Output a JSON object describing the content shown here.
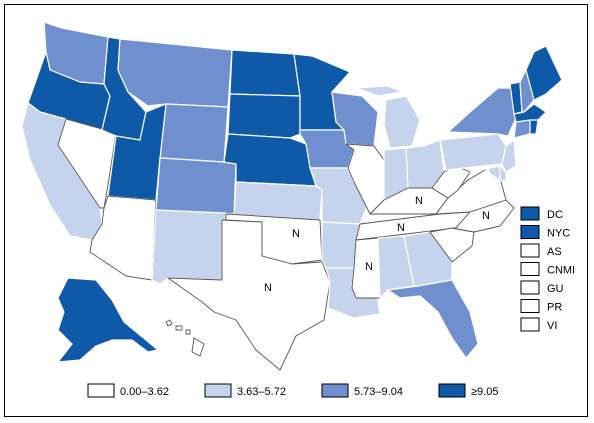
{
  "colors": {
    "c1": "#ffffff",
    "c2": "#c6d3ec",
    "c3": "#6f8fce",
    "c4": "#0f5aa8",
    "border": "#000000"
  },
  "map": {
    "n_label": "N",
    "state_classes": {
      "WA": "c3",
      "OR": "c4",
      "CA": "c2",
      "NV": "c1",
      "ID": "c4",
      "MT": "c3",
      "WY": "c3",
      "UT": "c4",
      "AZ": "c1",
      "CO": "c3",
      "NM": "c2",
      "ND": "c4",
      "SD": "c4",
      "NE": "c4",
      "KS": "c2",
      "OK": "c1",
      "TX": "c1",
      "MN": "c4",
      "IA": "c3",
      "MO": "c2",
      "AR": "c2",
      "LA": "c2",
      "WI": "c3",
      "IL": "c1",
      "MI": "c2",
      "IN": "c2",
      "OH": "c2",
      "KY": "c1",
      "TN": "c1",
      "MS": "c1",
      "AL": "c2",
      "GA": "c2",
      "FL": "c3",
      "SC": "c1",
      "NC": "c1",
      "VA": "c1",
      "WV": "c1",
      "PA": "c2",
      "NY": "c3",
      "VT": "c4",
      "NH": "c3",
      "ME": "c4",
      "MA": "c4",
      "CT": "c3",
      "RI": "c4",
      "NJ": "c2",
      "DE": "c2",
      "MD": "c2",
      "AK": "c4",
      "HI": "c1"
    }
  },
  "territories": [
    {
      "label": "DC",
      "class": "c4"
    },
    {
      "label": "NYC",
      "class": "c4"
    },
    {
      "label": "AS",
      "class": "c1"
    },
    {
      "label": "CNMI",
      "class": "c1"
    },
    {
      "label": "GU",
      "class": "c1"
    },
    {
      "label": "PR",
      "class": "c1"
    },
    {
      "label": "VI",
      "class": "c1"
    }
  ],
  "legend": [
    {
      "label": "0.00–3.62",
      "class": "c1"
    },
    {
      "label": "3.63–5.72",
      "class": "c2"
    },
    {
      "label": "5.73–9.04",
      "class": "c3"
    },
    {
      "label": "≥9.05",
      "class": "c4"
    }
  ]
}
